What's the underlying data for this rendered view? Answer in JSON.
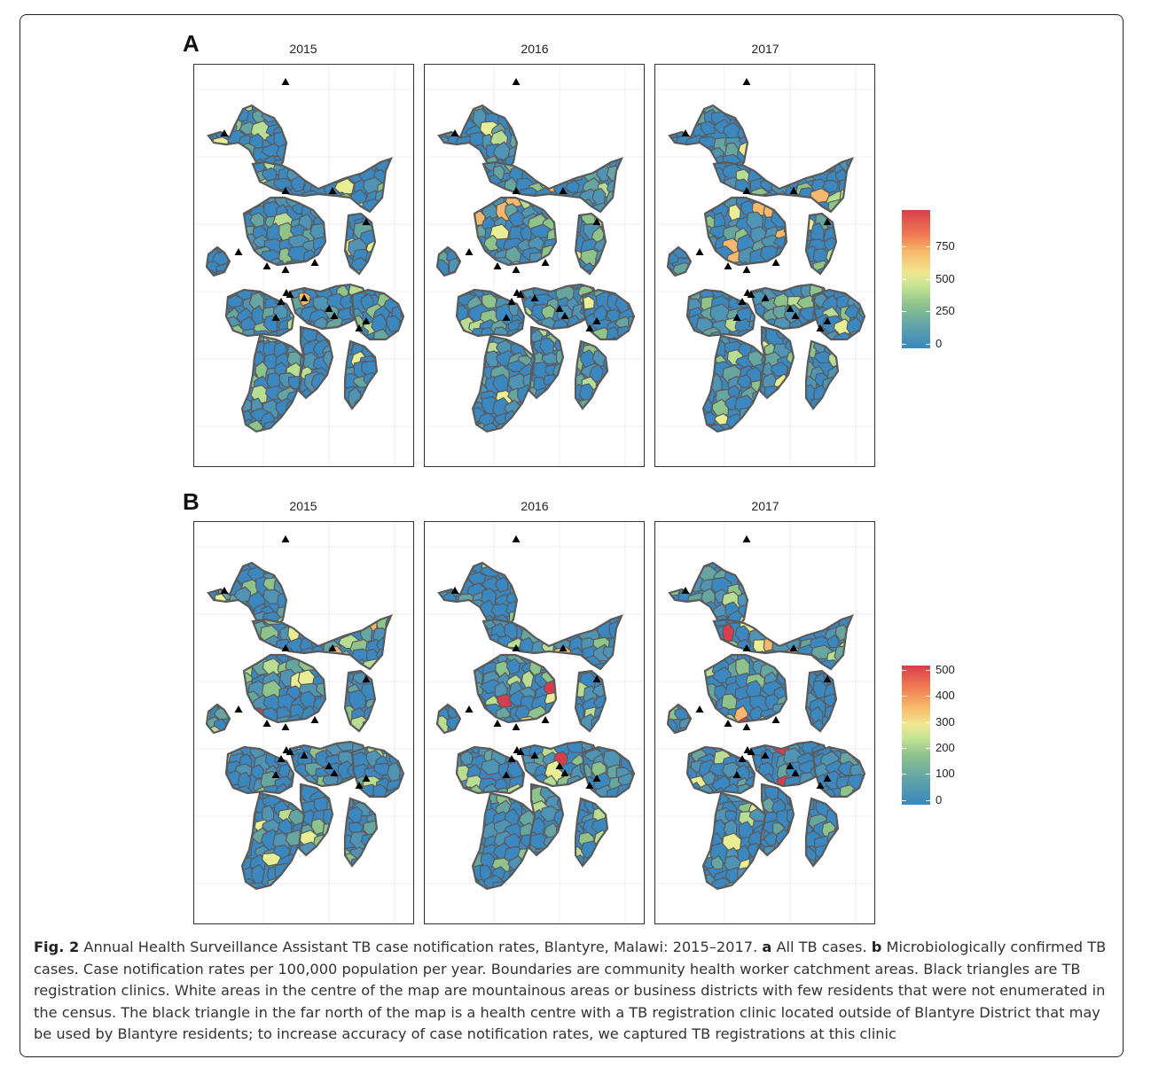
{
  "figure": {
    "panels": [
      {
        "letter": "A",
        "maps": [
          {
            "year": "2015"
          },
          {
            "year": "2016"
          },
          {
            "year": "2017"
          }
        ],
        "legend": {
          "ticks": [
            "750",
            "500",
            "250",
            "0"
          ],
          "max": 980
        }
      },
      {
        "letter": "B",
        "maps": [
          {
            "year": "2015"
          },
          {
            "year": "2016"
          },
          {
            "year": "2017"
          }
        ],
        "legend": {
          "ticks": [
            "500",
            "400",
            "300",
            "200",
            "100",
            "0"
          ],
          "max": 520
        }
      }
    ],
    "colors": {
      "low": "#3b87c0",
      "mid_low": "#4f94b4",
      "teal": "#66a5a0",
      "green": "#8fc38c",
      "light_green": "#b8dd93",
      "yellow": "#e8ee93",
      "orange": "#f6b96b",
      "red": "#d73e4b",
      "boundary": "#5a5a5a",
      "clinic": "#000000"
    },
    "caption": {
      "fig_label": "Fig. 2",
      "text1": " Annual Health Surveillance Assistant TB case notification rates, Blantyre, Malawi: 2015–2017. ",
      "a_label": "a",
      "text2": " All TB cases. ",
      "b_label": "b",
      "text3": " Microbiologically confirmed TB cases. Case notification rates per 100,000 population per year. Boundaries are community health worker catchment areas. Black triangles are TB registration clinics. White areas in the centre of the map are mountainous areas or business districts with few residents that were not enumerated in the census. The black triangle in the far north of the map is a health centre with a TB registration clinic located outside of Blantyre District that may be used by Blantyre residents; to increase accuracy of case notification rates, we captured TB registrations at this clinic"
    }
  }
}
